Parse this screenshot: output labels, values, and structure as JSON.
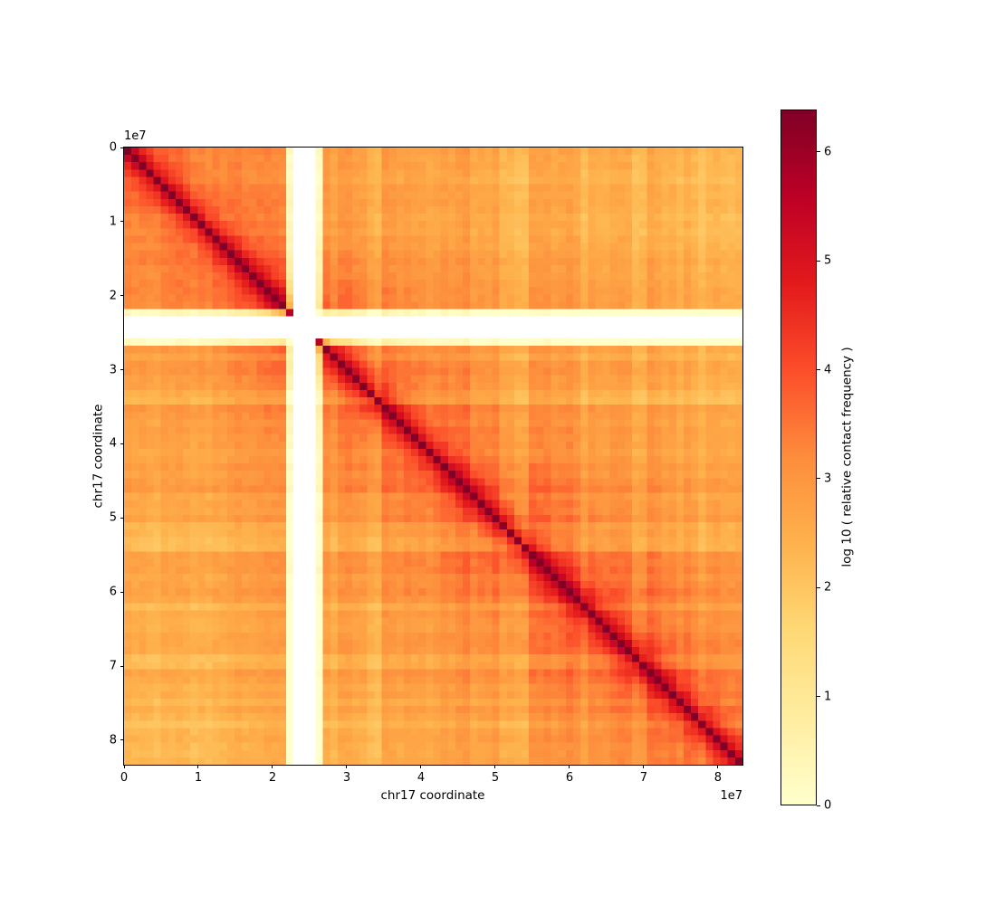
{
  "figure": {
    "background": "#ffffff",
    "title": ""
  },
  "chart_data": {
    "type": "heatmap",
    "title": "",
    "xlabel": "chr17 coordinate",
    "ylabel": "chr17 coordinate",
    "x_offset_label": "1e7",
    "y_offset_label": "1e7",
    "x_range": [
      0,
      83300000
    ],
    "y_range": [
      0,
      83300000
    ],
    "grid": false,
    "x_ticks": [
      {
        "value": 0,
        "label": "0"
      },
      {
        "value": 10000000,
        "label": "1"
      },
      {
        "value": 20000000,
        "label": "2"
      },
      {
        "value": 30000000,
        "label": "3"
      },
      {
        "value": 40000000,
        "label": "4"
      },
      {
        "value": 50000000,
        "label": "5"
      },
      {
        "value": 60000000,
        "label": "6"
      },
      {
        "value": 70000000,
        "label": "7"
      },
      {
        "value": 80000000,
        "label": "8"
      }
    ],
    "y_ticks": [
      {
        "value": 0,
        "label": "0"
      },
      {
        "value": 10000000,
        "label": "1"
      },
      {
        "value": 20000000,
        "label": "2"
      },
      {
        "value": 30000000,
        "label": "3"
      },
      {
        "value": 40000000,
        "label": "4"
      },
      {
        "value": 50000000,
        "label": "5"
      },
      {
        "value": 60000000,
        "label": "6"
      },
      {
        "value": 70000000,
        "label": "7"
      },
      {
        "value": 80000000,
        "label": "8"
      }
    ],
    "colorbar": {
      "label": "log 10 ( relative contact frequency )",
      "position": "right",
      "vmin": 0,
      "vmax": 6.39,
      "ticks": [
        {
          "value": 0,
          "label": "0"
        },
        {
          "value": 1,
          "label": "1"
        },
        {
          "value": 2,
          "label": "2"
        },
        {
          "value": 3,
          "label": "3"
        },
        {
          "value": 4,
          "label": "4"
        },
        {
          "value": 5,
          "label": "5"
        },
        {
          "value": 6,
          "label": "6"
        }
      ]
    },
    "colormap": {
      "name": "YlOrRd",
      "stops": [
        "#ffffcc",
        "#ffeda0",
        "#fed976",
        "#feb24c",
        "#fd8d3c",
        "#fc4e2a",
        "#e31a1c",
        "#bd0026",
        "#800026"
      ],
      "nan_color": "#ffffff"
    },
    "matrix": {
      "description": "Symmetric Hi-C intra-chromosomal contact matrix of chr17 at ~1 Mb bins; log10 relative contact frequency is ~6.4 on the diagonal, decays with genomic distance to ~2.4-3.2 background with mottled bin-coverage striping; unmappable centromeric bins (~23-26 Mb) form a white cross; pale low-coverage stripes near 33-34, 51-54 and 69-70 Mb.",
      "n_bins": 84,
      "bin_size_bp": 1000000,
      "diagonal_value": 6.39,
      "distance_decay_log10": [
        [
          0,
          6.39
        ],
        [
          1,
          5.32
        ],
        [
          2,
          4.68
        ],
        [
          3,
          4.28
        ],
        [
          4,
          3.98
        ],
        [
          5,
          3.78
        ],
        [
          8,
          3.55
        ],
        [
          13,
          3.35
        ],
        [
          21,
          3.12
        ],
        [
          34,
          2.92
        ],
        [
          55,
          2.68
        ],
        [
          84,
          2.42
        ]
      ],
      "nan_bins": [
        23,
        24,
        25
      ],
      "very_low_coverage_bins": [
        22,
        26
      ],
      "light_coverage_bins": [
        33,
        34,
        51,
        52,
        53,
        54,
        69,
        70,
        78
      ],
      "slightly_light_bins": [
        9,
        10,
        11,
        28,
        41,
        47,
        62,
        75
      ],
      "band_amplitude": 0.34,
      "cell_noise": 0.24,
      "seed": 17
    }
  }
}
